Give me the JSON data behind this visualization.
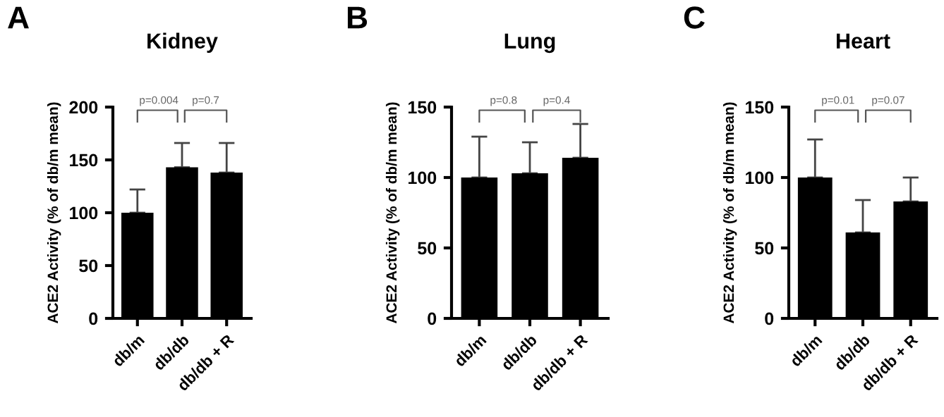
{
  "chart_data": [
    {
      "type": "bar",
      "title": "Kidney",
      "ylabel": "ACE2 Activity (% of db/m mean)",
      "categories": [
        "db/m",
        "db/db",
        "db/db + R"
      ],
      "values": [
        100,
        143,
        138
      ],
      "errors": [
        [
          100,
          122
        ],
        [
          143,
          166
        ],
        [
          138,
          166
        ]
      ],
      "color": "#000000",
      "ylim": [
        0,
        200
      ],
      "yticks": [
        0,
        50,
        100,
        150,
        200
      ],
      "grid": false,
      "annotations": [
        "A",
        "p=0.004",
        "p=0.7"
      ]
    },
    {
      "type": "bar",
      "title": "Lung",
      "ylabel": "ACE2 Activity (% of db/m mean)",
      "categories": [
        "db/m",
        "db/db",
        "db/db + R"
      ],
      "values": [
        100,
        103,
        114
      ],
      "errors": [
        [
          100,
          129
        ],
        [
          103,
          125
        ],
        [
          114,
          138
        ]
      ],
      "color": "#000000",
      "ylim": [
        0,
        150
      ],
      "yticks": [
        0,
        50,
        100,
        150
      ],
      "grid": false,
      "annotations": [
        "B",
        "p=0.8",
        "p=0.4"
      ]
    },
    {
      "type": "bar",
      "title": "Heart",
      "ylabel": "ACE2 Activity (% of db/m mean)",
      "categories": [
        "db/m",
        "db/db",
        "db/db + R"
      ],
      "values": [
        100,
        61,
        83
      ],
      "errors": [
        [
          100,
          127
        ],
        [
          61,
          84
        ],
        [
          83,
          100
        ]
      ],
      "color": "#000000",
      "ylim": [
        0,
        150
      ],
      "yticks": [
        0,
        50,
        100,
        150
      ],
      "grid": false,
      "annotations": [
        "C",
        "p=0.01",
        "p=0.07"
      ]
    }
  ]
}
